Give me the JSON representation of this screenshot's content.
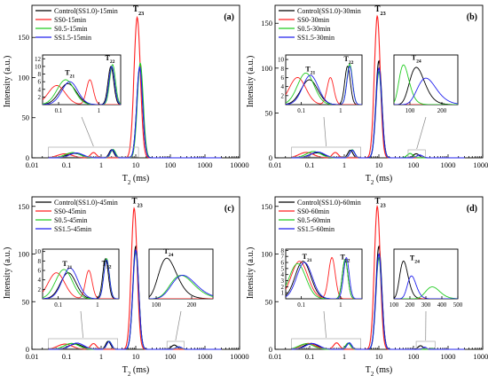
{
  "colors": {
    "black": "#000000",
    "red": "#ff2020",
    "green": "#22cc22",
    "blue": "#2222ee"
  },
  "chart_data": [
    {
      "type": "line",
      "panel_label": "(a)",
      "xlabel": "T",
      "xlabel_sub": "2",
      "xlabel_unit": " (ms)",
      "ylabel": "Intensity (a.u.)",
      "xscale": "log",
      "xlim": [
        0.01,
        10000
      ],
      "ylim": [
        0,
        190
      ],
      "xticks": [
        "0.01",
        "0.1",
        "1",
        "10",
        "100",
        "1000",
        "10000"
      ],
      "yticks": [
        0,
        50,
        100,
        150
      ],
      "legend_position": "top-left",
      "series": [
        {
          "name": "Control(SS1.0)-15min",
          "color": "black",
          "peaks": [
            [
              0.17,
              5.5,
              0.3
            ],
            [
              2.0,
              10,
              0.1
            ],
            [
              13,
              112,
              0.12
            ]
          ]
        },
        {
          "name": "SS0-15min",
          "color": "red",
          "peaks": [
            [
              0.09,
              5,
              0.3
            ],
            [
              0.6,
              6.5,
              0.12
            ],
            [
              11,
              175,
              0.13
            ]
          ]
        },
        {
          "name": "S0.5-15min",
          "color": "green",
          "peaks": [
            [
              0.15,
              6.5,
              0.3
            ],
            [
              2.2,
              10.5,
              0.1
            ],
            [
              13.5,
              118,
              0.12
            ]
          ]
        },
        {
          "name": "SS1.5-15min",
          "color": "blue",
          "peaks": [
            [
              0.19,
              6.0,
              0.28
            ],
            [
              2.1,
              10,
              0.1
            ],
            [
              13,
              113,
              0.12
            ]
          ]
        }
      ],
      "annotations": [
        {
          "text": "T",
          "sub": "23",
          "x": 12,
          "y": 182
        }
      ],
      "inset": {
        "xscale": "log",
        "xlim": [
          0.04,
          3.5
        ],
        "ylim": [
          0,
          13
        ],
        "xticks": [
          "0.1",
          "1"
        ],
        "yticks": [
          2,
          4,
          6,
          8,
          10,
          12
        ],
        "labels": [
          {
            "text": "T",
            "sub": "21",
            "x": 0.19,
            "y": 7.8
          },
          {
            "text": "T",
            "sub": "22",
            "x": 1.9,
            "y": 11.6
          }
        ]
      }
    },
    {
      "type": "line",
      "panel_label": "(b)",
      "xlabel": "T",
      "xlabel_sub": "2",
      "xlabel_unit": " (ms)",
      "ylabel": "Intensity (a.u.)",
      "xscale": "log",
      "xlim": [
        0.01,
        10000
      ],
      "ylim": [
        0,
        170
      ],
      "xticks": [
        "0.01",
        "0.1",
        "1",
        "10",
        "100",
        "1000",
        "10000"
      ],
      "yticks": [
        0,
        50,
        100,
        150
      ],
      "legend_position": "top-left",
      "series": [
        {
          "name": "Control(SS1.0)-30min",
          "color": "black",
          "peaks": [
            [
              0.16,
              5.5,
              0.3
            ],
            [
              1.5,
              8.5,
              0.1
            ],
            [
              10,
              108,
              0.12
            ],
            [
              120,
              4.5,
              0.12
            ]
          ]
        },
        {
          "name": "SS0-30min",
          "color": "red",
          "peaks": [
            [
              0.08,
              6,
              0.3
            ],
            [
              0.55,
              6,
              0.12
            ],
            [
              9,
              158,
              0.12
            ]
          ]
        },
        {
          "name": "S0.5-30min",
          "color": "green",
          "peaks": [
            [
              0.13,
              7,
              0.3
            ],
            [
              1.7,
              9,
              0.1
            ],
            [
              10,
              96,
              0.12
            ],
            [
              80,
              4.8,
              0.12
            ]
          ]
        },
        {
          "name": "SS1.5-30min",
          "color": "blue",
          "peaks": [
            [
              0.17,
              6.5,
              0.28
            ],
            [
              1.7,
              8.5,
              0.1
            ],
            [
              10,
              100,
              0.12
            ],
            [
              150,
              3.2,
              0.12
            ]
          ]
        }
      ],
      "annotations": [
        {
          "text": "T",
          "sub": "23",
          "x": 11,
          "y": 163
        }
      ],
      "inset": {
        "xscale": "log",
        "xlim": [
          0.04,
          3.5
        ],
        "ylim": [
          0,
          11
        ],
        "xticks": [
          "0.1",
          "1"
        ],
        "yticks": [
          2,
          4,
          6,
          8,
          10
        ],
        "labels": [
          {
            "text": "T",
            "sub": "21",
            "x": 0.17,
            "y": 7.4
          },
          {
            "text": "T",
            "sub": "22",
            "x": 1.6,
            "y": 9.6
          }
        ]
      },
      "inset2": {
        "xscale": "linear",
        "xlim": [
          50,
          250
        ],
        "ylim": [
          0,
          6
        ],
        "xticks": [
          "100",
          "200"
        ],
        "labels": [
          {
            "text": "T",
            "sub": "24",
            "x": 120,
            "y": 5.4
          }
        ]
      }
    },
    {
      "type": "line",
      "panel_label": "(c)",
      "xlabel": "T",
      "xlabel_sub": "2",
      "xlabel_unit": " (ms)",
      "ylabel": "Intensity (a.u.)",
      "xscale": "log",
      "xlim": [
        0.01,
        10000
      ],
      "ylim": [
        0,
        160
      ],
      "xticks": [
        "0.01",
        "0.1",
        "1",
        "10",
        "100",
        "1000",
        "10000"
      ],
      "yticks": [
        0,
        50,
        100,
        150
      ],
      "legend_position": "top-left",
      "series": [
        {
          "name": "Control(SS1.0)-45min",
          "color": "black",
          "peaks": [
            [
              0.18,
              5.5,
              0.28
            ],
            [
              1.6,
              8.5,
              0.1
            ],
            [
              10,
              108,
              0.12
            ],
            [
              130,
              4.5,
              0.12
            ]
          ]
        },
        {
          "name": "SS0-45min",
          "color": "red",
          "peaks": [
            [
              0.09,
              5.5,
              0.3
            ],
            [
              0.6,
              6,
              0.12
            ],
            [
              9,
              148,
              0.12
            ]
          ]
        },
        {
          "name": "S0.5-45min",
          "color": "green",
          "peaks": [
            [
              0.14,
              6.2,
              0.3
            ],
            [
              1.7,
              8.5,
              0.1
            ],
            [
              10,
              102,
              0.12
            ],
            [
              170,
              2.6,
              0.12
            ]
          ]
        },
        {
          "name": "SS1.5-45min",
          "color": "blue",
          "peaks": [
            [
              0.2,
              6.5,
              0.28
            ],
            [
              1.7,
              8.2,
              0.1
            ],
            [
              10,
              104,
              0.12
            ],
            [
              175,
              2.6,
              0.12
            ]
          ]
        }
      ],
      "annotations": [
        {
          "text": "T",
          "sub": "23",
          "x": 11,
          "y": 153
        }
      ],
      "inset": {
        "xscale": "log",
        "xlim": [
          0.04,
          3.5
        ],
        "ylim": [
          0,
          10.5
        ],
        "xticks": [
          "0.1",
          "1"
        ],
        "yticks": [
          2,
          4,
          6,
          8,
          10
        ],
        "labels": [
          {
            "text": "T",
            "sub": "21",
            "x": 0.17,
            "y": 6.9
          },
          {
            "text": "T",
            "sub": "22",
            "x": 1.7,
            "y": 7.0
          }
        ]
      },
      "inset2": {
        "xscale": "linear",
        "xlim": [
          80,
          260
        ],
        "ylim": [
          0,
          5.5
        ],
        "xticks": [
          "100",
          "200"
        ],
        "labels": [
          {
            "text": "T",
            "sub": "24",
            "x": 135,
            "y": 5.0
          }
        ]
      }
    },
    {
      "type": "line",
      "panel_label": "(d)",
      "xlabel": "T",
      "xlabel_sub": "2",
      "xlabel_unit": " (ms)",
      "ylabel": "Intensity (a.u.)",
      "xscale": "log",
      "xlim": [
        0.01,
        10000
      ],
      "ylim": [
        0,
        160
      ],
      "xticks": [
        "0.01",
        "0.1",
        "1",
        "10",
        "100",
        "1000",
        "10000"
      ],
      "yticks": [
        0,
        50,
        100,
        150
      ],
      "legend_position": "top-left",
      "series": [
        {
          "name": "Control(SS1.0)-60min",
          "color": "black",
          "peaks": [
            [
              0.11,
              6.2,
              0.28
            ],
            [
              1.3,
              6.5,
              0.1
            ],
            [
              10,
              108,
              0.12
            ],
            [
              160,
              3.8,
              0.1
            ]
          ]
        },
        {
          "name": "SS0-60min",
          "color": "red",
          "peaks": [
            [
              0.09,
              6.2,
              0.3
            ],
            [
              0.6,
              6.8,
              0.12
            ],
            [
              9,
              150,
              0.12
            ]
          ]
        },
        {
          "name": "S0.5-60min",
          "color": "green",
          "peaks": [
            [
              0.08,
              5.8,
              0.3
            ],
            [
              1.3,
              6.5,
              0.1
            ],
            [
              10,
              96,
              0.12
            ],
            [
              340,
              1.2,
              0.08
            ]
          ]
        },
        {
          "name": "SS1.5-60min",
          "color": "blue",
          "peaks": [
            [
              0.12,
              6.0,
              0.28
            ],
            [
              1.4,
              6.8,
              0.1
            ],
            [
              10,
              100,
              0.12
            ],
            [
              210,
              2.3,
              0.08
            ]
          ]
        }
      ],
      "annotations": [
        {
          "text": "T",
          "sub": "23",
          "x": 11,
          "y": 153
        }
      ],
      "inset": {
        "xscale": "log",
        "xlim": [
          0.04,
          3.5
        ],
        "ylim": [
          0,
          8.2
        ],
        "xticks": [
          "0.1",
          "1"
        ],
        "yticks": [
          1,
          2,
          3,
          4,
          5,
          6,
          7,
          8
        ],
        "labels": [
          {
            "text": "T",
            "sub": "21",
            "x": 0.14,
            "y": 6.6
          },
          {
            "text": "T",
            "sub": "22",
            "x": 1.3,
            "y": 6.5
          }
        ]
      },
      "inset2": {
        "xscale": "linear",
        "xlim": [
          100,
          500
        ],
        "ylim": [
          0,
          5
        ],
        "xticks": [
          "100",
          "200",
          "300",
          "400",
          "500"
        ],
        "labels": [
          {
            "text": "T",
            "sub": "24",
            "x": 230,
            "y": 3.9
          }
        ]
      }
    }
  ]
}
